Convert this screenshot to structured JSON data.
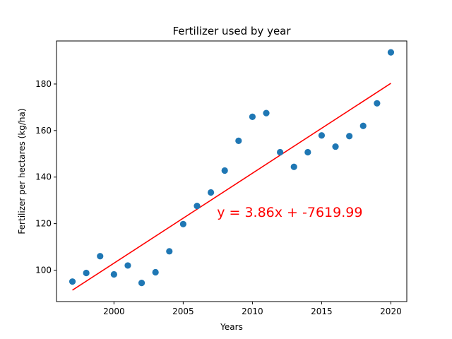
{
  "chart_data": {
    "type": "scatter",
    "title": "Fertilizer used by year",
    "xlabel": "Years",
    "ylabel": "Fertilizer per hectares (kg/ha)",
    "xlim": [
      1995.85,
      2021.15
    ],
    "ylim": [
      86.5,
      198.5
    ],
    "xticks": [
      2000,
      2005,
      2010,
      2015,
      2020
    ],
    "yticks": [
      100,
      120,
      140,
      160,
      180
    ],
    "grid": false,
    "series": [
      {
        "kind": "scatter",
        "color": "#1f77b4",
        "x": [
          1997,
          1998,
          1999,
          2000,
          2001,
          2002,
          2003,
          2004,
          2005,
          2006,
          2007,
          2008,
          2009,
          2010,
          2011,
          2012,
          2013,
          2014,
          2015,
          2016,
          2017,
          2018,
          2019,
          2020
        ],
        "y": [
          95.1,
          98.8,
          106.0,
          98.2,
          102.0,
          94.5,
          99.1,
          108.1,
          119.8,
          127.6,
          133.4,
          142.8,
          155.6,
          165.9,
          167.5,
          150.7,
          144.4,
          150.7,
          157.9,
          153.1,
          157.6,
          162.0,
          171.7,
          193.6
        ]
      },
      {
        "kind": "line",
        "color": "#ff0000",
        "x": [
          1997,
          2020
        ],
        "y": [
          91.4,
          180.3
        ]
      }
    ],
    "annotations": [
      {
        "text": "y = 3.86x + -7619.99",
        "color": "#ff0000",
        "x": 2012.7,
        "y": 125.0
      }
    ]
  }
}
